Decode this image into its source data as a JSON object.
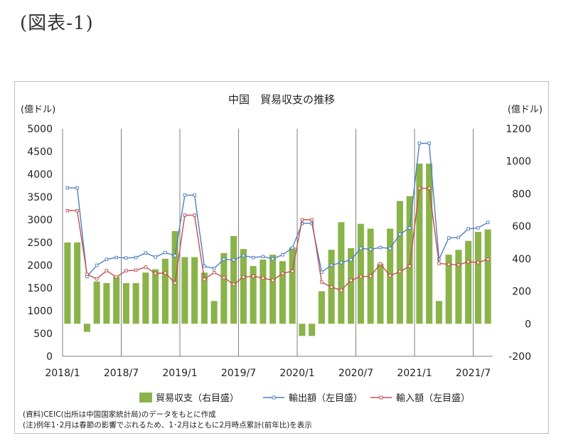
{
  "figure_label": "(図表-1)",
  "notes": [
    "(資料)CEIC(出所は中国国家統計局)のデータをもとに作成",
    "(注)例年1･2月は春節の影響でぶれるため、1･2月はともに2月時点累計(前年比)を表示"
  ],
  "chart_data": {
    "type": "bar",
    "title": "中国　貿易収支の推移",
    "y_left": {
      "unit": "(億ドル)",
      "min": 0,
      "max": 5000,
      "step": 500,
      "ticks": [
        "0",
        "500",
        "1000",
        "1500",
        "2000",
        "2500",
        "3000",
        "3500",
        "4000",
        "4500",
        "5000"
      ]
    },
    "y_right": {
      "unit": "(億ドル)",
      "min": -200,
      "max": 1200,
      "step": 200,
      "ticks": [
        "-200",
        "0",
        "200",
        "400",
        "600",
        "800",
        "1000",
        "1200"
      ]
    },
    "x_tick_labels": [
      {
        "index": 0,
        "label": "2018/1"
      },
      {
        "index": 6,
        "label": "2018/7"
      },
      {
        "index": 12,
        "label": "2019/1"
      },
      {
        "index": 18,
        "label": "2019/7"
      },
      {
        "index": 24,
        "label": "2020/1"
      },
      {
        "index": 30,
        "label": "2020/7"
      },
      {
        "index": 36,
        "label": "2021/1"
      },
      {
        "index": 42,
        "label": "2021/7"
      }
    ],
    "categories": [
      "2018/1",
      "2018/2",
      "2018/3",
      "2018/4",
      "2018/5",
      "2018/6",
      "2018/7",
      "2018/8",
      "2018/9",
      "2018/10",
      "2018/11",
      "2018/12",
      "2019/1",
      "2019/2",
      "2019/3",
      "2019/4",
      "2019/5",
      "2019/6",
      "2019/7",
      "2019/8",
      "2019/9",
      "2019/10",
      "2019/11",
      "2019/12",
      "2020/1",
      "2020/2",
      "2020/3",
      "2020/4",
      "2020/5",
      "2020/6",
      "2020/7",
      "2020/8",
      "2020/9",
      "2020/10",
      "2020/11",
      "2020/12",
      "2021/1",
      "2021/2",
      "2021/3",
      "2021/4",
      "2021/5",
      "2021/6",
      "2021/7",
      "2021/8"
    ],
    "legend": {
      "position": "bottom"
    },
    "colors": {
      "balance": "#8ab34a",
      "exports": "#4f7fbf",
      "imports": "#c0504d",
      "grid": "#7f7f7f"
    },
    "series": [
      {
        "name": "貿易収支（右目盛）",
        "kind": "bar",
        "axis": "right",
        "values": [
          500,
          500,
          -50,
          260,
          250,
          290,
          250,
          250,
          315,
          335,
          400,
          570,
          410,
          410,
          315,
          140,
          435,
          540,
          460,
          355,
          395,
          425,
          385,
          470,
          -75,
          -75,
          200,
          455,
          625,
          465,
          615,
          585,
          370,
          585,
          755,
          785,
          985,
          985,
          140,
          425,
          455,
          510,
          565,
          580
        ]
      },
      {
        "name": "輸出額（左目盛）",
        "kind": "line",
        "axis": "left",
        "values": [
          3700,
          3700,
          1750,
          2000,
          2130,
          2170,
          2160,
          2170,
          2270,
          2180,
          2280,
          2210,
          3540,
          3540,
          1980,
          1930,
          2130,
          2120,
          2210,
          2170,
          2190,
          2140,
          2230,
          2380,
          2920,
          2920,
          1850,
          2000,
          2060,
          2120,
          2370,
          2350,
          2390,
          2370,
          2680,
          2820,
          4680,
          4680,
          2130,
          2600,
          2610,
          2800,
          2820,
          2940
        ]
      },
      {
        "name": "輸入額（左目盛）",
        "kind": "line",
        "axis": "left",
        "values": [
          3200,
          3200,
          1800,
          1700,
          1880,
          1740,
          1880,
          1890,
          1960,
          1820,
          1830,
          1610,
          3100,
          3100,
          1690,
          1840,
          1730,
          1580,
          1740,
          1760,
          1720,
          1670,
          1820,
          1870,
          3000,
          3000,
          1630,
          1520,
          1450,
          1670,
          1750,
          1760,
          2030,
          1770,
          1860,
          1980,
          3690,
          3690,
          2040,
          2020,
          2010,
          2080,
          2060,
          2130
        ]
      }
    ]
  }
}
